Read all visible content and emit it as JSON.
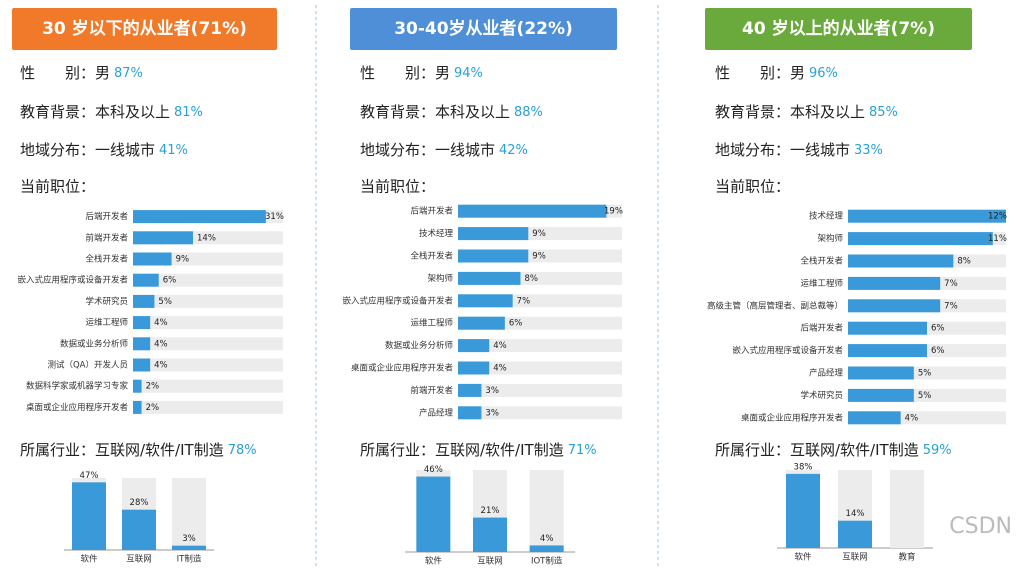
{
  "panels": [
    {
      "title": "30 岁以下的从业者(71%)",
      "color": "#f07a2a",
      "stats": [
        {
          "label": "性　　别：男",
          "value": "87%"
        },
        {
          "label": "教育背景：本科及以上",
          "value": "81%"
        },
        {
          "label": "地域分布：一线城市",
          "value": "41%"
        }
      ],
      "roles_label": "当前职位：",
      "industry": {
        "label": "所属行业：互联网/软件/IT制造",
        "value": "78%"
      }
    },
    {
      "title": "30-40岁从业者(22%)",
      "color": "#4f8fd8",
      "stats": [
        {
          "label": "性　　别：男",
          "value": "94%"
        },
        {
          "label": "教育背景：本科及以上",
          "value": "88%"
        },
        {
          "label": "地域分布：一线城市",
          "value": "42%"
        }
      ],
      "roles_label": "当前职位：",
      "industry": {
        "label": "所属行业：互联网/软件/IT制造",
        "value": "71%"
      }
    },
    {
      "title": "40 岁以上的从业者(7%)",
      "color": "#6aaa3c",
      "stats": [
        {
          "label": "性　　别：男",
          "value": "96%"
        },
        {
          "label": "教育背景：本科及以上",
          "value": "85%"
        },
        {
          "label": "地域分布：一线城市",
          "value": "33%"
        }
      ],
      "roles_label": "当前职位：",
      "industry": {
        "label": "所属行业：互联网/软件/IT制造",
        "value": "59%"
      }
    }
  ],
  "watermark": "CSDN",
  "chart_data": [
    {
      "type": "bar",
      "horizontal": true,
      "color": "#3a9ad9",
      "xlim": [
        0,
        35
      ],
      "categories": [
        "后端开发者",
        "前端开发者",
        "全栈开发者",
        "嵌入式应用程序或设备开发者",
        "学术研究员",
        "运维工程师",
        "数据或业务分析师",
        "测试（QA）开发人员",
        "数据科学家或机器学习专家",
        "桌面或企业应用程序开发者"
      ],
      "values": [
        31,
        14,
        9,
        6,
        5,
        4,
        4,
        4,
        2,
        2
      ],
      "value_labels": [
        "31%",
        "14%",
        "9%",
        "6%",
        "5%",
        "4%",
        "4%",
        "4%",
        "2%",
        "2%"
      ]
    },
    {
      "type": "bar",
      "horizontal": true,
      "color": "#3a9ad9",
      "xlim": [
        0,
        21
      ],
      "categories": [
        "后端开发者",
        "技术经理",
        "全栈开发者",
        "架构师",
        "嵌入式应用程序或设备开发者",
        "运维工程师",
        "数据或业务分析师",
        "桌面或企业应用程序开发者",
        "前端开发者",
        "产品经理"
      ],
      "values": [
        19,
        9,
        9,
        8,
        7,
        6,
        4,
        4,
        3,
        3
      ],
      "value_labels": [
        "19%",
        "9%",
        "9%",
        "8%",
        "7%",
        "6%",
        "4%",
        "4%",
        "3%",
        "3%"
      ]
    },
    {
      "type": "bar",
      "horizontal": true,
      "color": "#3a9ad9",
      "xlim": [
        0,
        12
      ],
      "categories": [
        "技术经理",
        "架构师",
        "全栈开发者",
        "运维工程师",
        "高级主管（高层管理者、副总裁等）",
        "后端开发者",
        "嵌入式应用程序或设备开发者",
        "产品经理",
        "学术研究员",
        "桌面或企业应用程序开发者"
      ],
      "values": [
        12,
        11,
        8,
        7,
        7,
        6,
        6,
        5,
        5,
        4
      ],
      "value_labels": [
        "12%",
        "11%",
        "8%",
        "7%",
        "7%",
        "6%",
        "6%",
        "5%",
        "5%",
        "4%"
      ]
    },
    {
      "type": "bar",
      "horizontal": false,
      "color": "#3a9ad9",
      "ylim": [
        0,
        50
      ],
      "categories": [
        "软件",
        "互联网",
        "IT制造"
      ],
      "values": [
        47,
        28,
        3
      ],
      "value_labels": [
        "47%",
        "28%",
        "3%"
      ]
    },
    {
      "type": "bar",
      "horizontal": false,
      "color": "#3a9ad9",
      "ylim": [
        0,
        50
      ],
      "categories": [
        "软件",
        "互联网",
        "IOT制造"
      ],
      "values": [
        46,
        21,
        4
      ],
      "value_labels": [
        "46%",
        "21%",
        "4%"
      ]
    },
    {
      "type": "bar",
      "horizontal": false,
      "color": "#3a9ad9",
      "ylim": [
        0,
        40
      ],
      "categories": [
        "软件",
        "互联网",
        "教育"
      ],
      "values": [
        38,
        14,
        null
      ],
      "value_labels": [
        "38%",
        "14%",
        null
      ]
    }
  ]
}
